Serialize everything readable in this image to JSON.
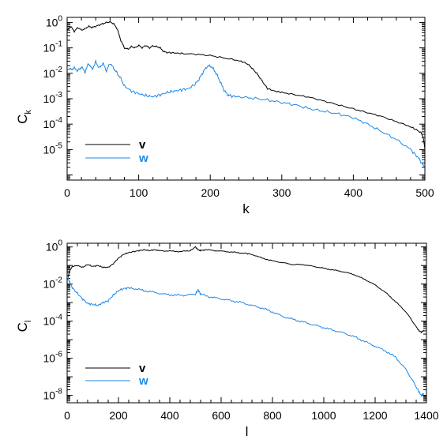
{
  "colors": {
    "v": "#000000",
    "w": "#1e88e5",
    "axis": "#000000"
  },
  "chart_data": [
    {
      "type": "line",
      "xlabel": "k",
      "ylabel_main": "C",
      "ylabel_sub": "k",
      "xlim": [
        0,
        500
      ],
      "ylim_log10": [
        -6.2,
        0.2
      ],
      "yscale": "log",
      "xticks": [
        0,
        100,
        200,
        300,
        400,
        500
      ],
      "xtick_labels": [
        "0",
        "100",
        "200",
        "300",
        "400",
        "500"
      ],
      "yticks_exp": [
        0,
        -1,
        -2,
        -3,
        -4,
        -5
      ],
      "ytick_labels": [
        {
          "base": "10",
          "exp": "0"
        },
        {
          "base": "10",
          "exp": "-1"
        },
        {
          "base": "10",
          "exp": "-2"
        },
        {
          "base": "10",
          "exp": "-3"
        },
        {
          "base": "10",
          "exp": "-4"
        },
        {
          "base": "10",
          "exp": "-5"
        }
      ],
      "legend_position": "bottom-left",
      "series": [
        {
          "name": "v",
          "color": "#000000",
          "x": [
            0,
            2,
            5,
            10,
            15,
            20,
            25,
            30,
            35,
            40,
            45,
            50,
            55,
            60,
            65,
            70,
            75,
            80,
            85,
            90,
            95,
            100,
            105,
            110,
            115,
            120,
            125,
            130,
            135,
            140,
            150,
            160,
            180,
            200,
            220,
            240,
            250,
            255,
            260,
            265,
            270,
            275,
            280,
            290,
            300,
            320,
            340,
            360,
            380,
            400,
            420,
            440,
            460,
            480,
            490,
            495,
            498,
            500
          ],
          "y_log10": [
            -0.35,
            -0.25,
            -0.15,
            -0.35,
            -0.2,
            -0.3,
            -0.25,
            -0.15,
            -0.2,
            -0.15,
            -0.1,
            -0.05,
            0.0,
            0.02,
            -0.05,
            -0.25,
            -0.7,
            -1.0,
            -1.05,
            -0.95,
            -1.0,
            -0.9,
            -1.0,
            -0.9,
            -1.0,
            -0.92,
            -0.95,
            -1.0,
            -1.15,
            -1.18,
            -1.2,
            -1.22,
            -1.25,
            -1.3,
            -1.4,
            -1.5,
            -1.6,
            -1.7,
            -1.85,
            -2.0,
            -2.2,
            -2.4,
            -2.6,
            -2.7,
            -2.75,
            -2.85,
            -2.95,
            -3.1,
            -3.25,
            -3.4,
            -3.55,
            -3.7,
            -3.9,
            -4.1,
            -4.25,
            -4.35,
            -4.55,
            -5.0
          ]
        },
        {
          "name": "w",
          "color": "#1e88e5",
          "x": [
            0,
            5,
            10,
            15,
            20,
            25,
            30,
            35,
            40,
            45,
            50,
            55,
            60,
            65,
            70,
            75,
            80,
            90,
            100,
            110,
            120,
            130,
            140,
            150,
            160,
            170,
            180,
            185,
            190,
            195,
            200,
            205,
            210,
            215,
            220,
            225,
            230,
            240,
            260,
            280,
            300,
            320,
            340,
            360,
            380,
            400,
            420,
            440,
            460,
            480,
            490,
            495,
            500
          ],
          "y_log10": [
            -1.8,
            -1.85,
            -1.8,
            -1.9,
            -1.75,
            -1.95,
            -1.6,
            -1.85,
            -1.55,
            -1.8,
            -1.6,
            -1.9,
            -1.6,
            -1.8,
            -2.0,
            -2.2,
            -2.5,
            -2.7,
            -2.8,
            -2.88,
            -2.92,
            -2.85,
            -2.75,
            -2.7,
            -2.65,
            -2.6,
            -2.4,
            -2.2,
            -1.95,
            -1.75,
            -1.7,
            -1.85,
            -2.1,
            -2.4,
            -2.7,
            -2.85,
            -2.9,
            -2.92,
            -2.98,
            -3.05,
            -3.15,
            -3.25,
            -3.4,
            -3.5,
            -3.6,
            -3.75,
            -4.0,
            -4.3,
            -4.6,
            -5.0,
            -5.3,
            -5.5,
            -5.75
          ]
        }
      ],
      "legend": [
        {
          "label": "v",
          "color": "#000000"
        },
        {
          "label": "w",
          "color": "#1e88e5"
        }
      ]
    },
    {
      "type": "line",
      "xlabel": "l",
      "ylabel_main": "C",
      "ylabel_sub": "l",
      "xlim": [
        0,
        1400
      ],
      "ylim_log10": [
        -8.4,
        0.2
      ],
      "yscale": "log",
      "xticks": [
        0,
        200,
        400,
        600,
        800,
        1000,
        1200,
        1400
      ],
      "xtick_labels": [
        "0",
        "200",
        "400",
        "600",
        "800",
        "1000",
        "1200",
        "1400"
      ],
      "yticks_exp": [
        0,
        -2,
        -4,
        -6,
        -8
      ],
      "ytick_labels": [
        {
          "base": "10",
          "exp": "0"
        },
        {
          "base": "10",
          "exp": "-2"
        },
        {
          "base": "10",
          "exp": "-4"
        },
        {
          "base": "10",
          "exp": "-6"
        },
        {
          "base": "10",
          "exp": "-8"
        }
      ],
      "legend_position": "bottom-left",
      "series": [
        {
          "name": "v",
          "color": "#000000",
          "x": [
            0,
            10,
            20,
            40,
            60,
            80,
            100,
            120,
            140,
            160,
            180,
            200,
            220,
            240,
            260,
            280,
            300,
            320,
            340,
            360,
            400,
            440,
            480,
            500,
            510,
            520,
            540,
            580,
            620,
            660,
            700,
            720,
            760,
            800,
            840,
            880,
            920,
            960,
            1000,
            1040,
            1080,
            1120,
            1160,
            1200,
            1240,
            1280,
            1320,
            1350,
            1370,
            1380,
            1390
          ],
          "y_log10": [
            -1.8,
            -1.3,
            -1.05,
            -1.0,
            -1.1,
            -0.95,
            -1.05,
            -1.0,
            -1.1,
            -1.1,
            -0.9,
            -0.6,
            -0.4,
            -0.3,
            -0.25,
            -0.2,
            -0.15,
            -0.2,
            -0.15,
            -0.2,
            -0.22,
            -0.25,
            -0.2,
            0.0,
            -0.15,
            -0.2,
            -0.15,
            -0.2,
            -0.25,
            -0.3,
            -0.35,
            -0.4,
            -0.6,
            -0.75,
            -0.85,
            -0.95,
            -0.95,
            -1.05,
            -1.15,
            -1.25,
            -1.35,
            -1.5,
            -1.75,
            -2.05,
            -2.45,
            -2.95,
            -3.5,
            -4.1,
            -4.5,
            -4.6,
            -4.5
          ]
        },
        {
          "name": "w",
          "color": "#1e88e5",
          "x": [
            0,
            10,
            20,
            40,
            60,
            80,
            100,
            120,
            140,
            160,
            180,
            200,
            220,
            240,
            260,
            300,
            340,
            380,
            420,
            460,
            500,
            510,
            520,
            560,
            600,
            640,
            680,
            720,
            760,
            800,
            840,
            880,
            920,
            960,
            1000,
            1040,
            1080,
            1120,
            1160,
            1200,
            1240,
            1280,
            1320,
            1350,
            1370,
            1380,
            1390
          ],
          "y_log10": [
            -1.6,
            -1.9,
            -2.2,
            -2.5,
            -2.8,
            -3.05,
            -3.1,
            -3.15,
            -3.0,
            -2.9,
            -2.6,
            -2.35,
            -2.25,
            -2.2,
            -2.25,
            -2.35,
            -2.45,
            -2.55,
            -2.6,
            -2.6,
            -2.55,
            -2.3,
            -2.55,
            -2.7,
            -2.8,
            -2.9,
            -3.0,
            -3.15,
            -3.3,
            -3.5,
            -3.75,
            -3.9,
            -4.05,
            -4.2,
            -4.35,
            -4.5,
            -4.65,
            -4.85,
            -5.1,
            -5.35,
            -5.6,
            -5.95,
            -6.6,
            -7.3,
            -7.8,
            -8.0,
            -7.9
          ]
        }
      ],
      "legend": [
        {
          "label": "v",
          "color": "#000000"
        },
        {
          "label": "w",
          "color": "#1e88e5"
        }
      ]
    }
  ]
}
